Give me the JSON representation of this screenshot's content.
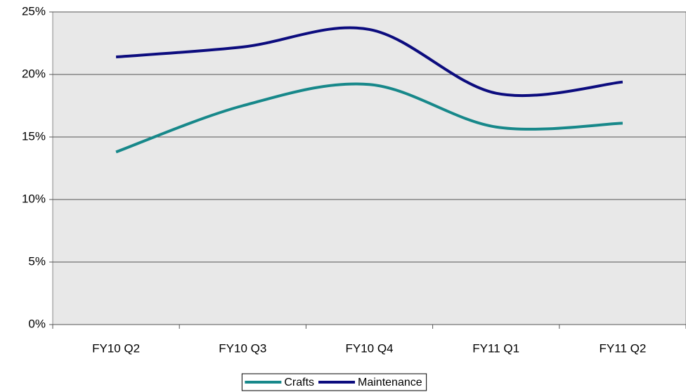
{
  "chart_data": {
    "type": "line",
    "categories": [
      "FY10 Q2",
      "FY10 Q3",
      "FY10 Q4",
      "FY11 Q1",
      "FY11 Q2"
    ],
    "series": [
      {
        "name": "Crafts",
        "color": "#17888a",
        "values": [
          13.8,
          17.5,
          19.2,
          15.8,
          16.1
        ]
      },
      {
        "name": "Maintenance",
        "color": "#0c0c7e",
        "values": [
          21.4,
          22.2,
          23.6,
          18.5,
          19.4
        ]
      }
    ],
    "ylim": [
      0,
      25
    ],
    "yticks": [
      {
        "value": 0,
        "label": "0%"
      },
      {
        "value": 5,
        "label": "5%"
      },
      {
        "value": 10,
        "label": "10%"
      },
      {
        "value": 15,
        "label": "15%"
      },
      {
        "value": 20,
        "label": "20%"
      },
      {
        "value": 25,
        "label": "25%"
      }
    ],
    "grid": true,
    "smooth": true,
    "legend": "bottom"
  }
}
